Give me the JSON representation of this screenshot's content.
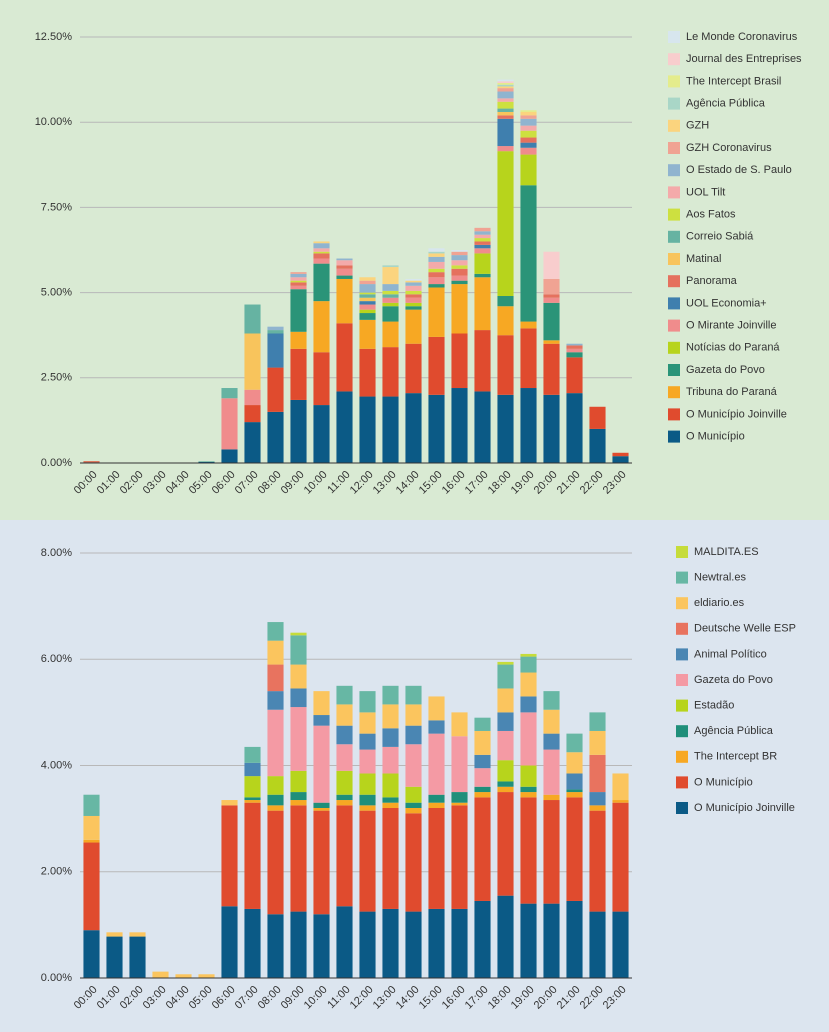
{
  "chart_data": [
    {
      "type": "bar",
      "stacked": true,
      "legend": "right",
      "grid": true,
      "background": "#d9ead3",
      "categories": [
        "00:00",
        "01:00",
        "02:00",
        "03:00",
        "04:00",
        "05:00",
        "06:00",
        "07:00",
        "08:00",
        "09:00",
        "10:00",
        "11:00",
        "12:00",
        "13:00",
        "14:00",
        "15:00",
        "16:00",
        "17:00",
        "18:00",
        "19:00",
        "20:00",
        "21:00",
        "22:00",
        "23:00"
      ],
      "ylim": [
        0,
        12.5
      ],
      "yticks": [
        {
          "value": 0,
          "label": "0.00%"
        },
        {
          "value": 2.5,
          "label": "2.50%"
        },
        {
          "value": 5,
          "label": "5.00%"
        },
        {
          "value": 7.5,
          "label": "7.50%"
        },
        {
          "value": 10,
          "label": "10.00%"
        },
        {
          "value": 12.5,
          "label": "12.50%"
        }
      ],
      "series": [
        {
          "name": "O Município",
          "color": "#0b5a86",
          "values": [
            0.02,
            0.01,
            0.01,
            0.01,
            0.01,
            0.03,
            0.4,
            1.2,
            1.5,
            1.85,
            1.7,
            2.1,
            1.95,
            1.95,
            2.05,
            2.0,
            2.2,
            2.1,
            2.0,
            2.2,
            2.0,
            2.05,
            1.0,
            0.2
          ]
        },
        {
          "name": "O Município Joinville",
          "color": "#e04b2e",
          "values": [
            0.03,
            0,
            0,
            0,
            0,
            0,
            0,
            0.5,
            1.3,
            1.5,
            1.55,
            2.0,
            1.4,
            1.45,
            1.45,
            1.7,
            1.6,
            1.8,
            1.75,
            1.75,
            1.5,
            1.05,
            0.65,
            0.1
          ]
        },
        {
          "name": "Tribuna do Paraná",
          "color": "#f7a823",
          "values": [
            0,
            0,
            0,
            0,
            0,
            0,
            0,
            0,
            0,
            0.5,
            1.5,
            1.3,
            0.85,
            0.75,
            1.0,
            1.45,
            1.45,
            1.55,
            0.85,
            0.2,
            0.1,
            0,
            0,
            0
          ]
        },
        {
          "name": "Gazeta do Povo",
          "color": "#2a9478",
          "values": [
            0,
            0,
            0,
            0,
            0,
            0,
            0,
            0,
            0,
            1.25,
            1.1,
            0.1,
            0.2,
            0.45,
            0.1,
            0.1,
            0.1,
            0.1,
            0.3,
            4.0,
            1.1,
            0.15,
            0,
            0
          ]
        },
        {
          "name": "Notícias do Paraná",
          "color": "#b7d41c",
          "values": [
            0,
            0,
            0,
            0,
            0,
            0,
            0,
            0,
            0,
            0,
            0,
            0,
            0.1,
            0.1,
            0.1,
            0,
            0,
            0.6,
            4.25,
            0.9,
            0,
            0,
            0,
            0
          ]
        },
        {
          "name": "O Mirante Joinville",
          "color": "#f08c8c",
          "values": [
            0,
            0,
            0,
            0,
            0,
            0,
            1.5,
            0.45,
            0,
            0.1,
            0.15,
            0.2,
            0.15,
            0.15,
            0.15,
            0.2,
            0.15,
            0.15,
            0.15,
            0.2,
            0.15,
            0.1,
            0,
            0
          ]
        },
        {
          "name": "UOL Economia+",
          "color": "#3f7fae",
          "values": [
            0,
            0,
            0,
            0,
            0,
            0,
            0,
            0,
            1.0,
            0,
            0,
            0,
            0.1,
            0,
            0,
            0,
            0,
            0.1,
            0.8,
            0.15,
            0,
            0,
            0,
            0
          ]
        },
        {
          "name": "Panorama",
          "color": "#e5715e",
          "values": [
            0,
            0,
            0,
            0,
            0,
            0,
            0,
            0,
            0,
            0.1,
            0.15,
            0.1,
            0,
            0,
            0.1,
            0.15,
            0.2,
            0.1,
            0.1,
            0.15,
            0.1,
            0.1,
            0,
            0
          ]
        },
        {
          "name": "Matinal",
          "color": "#f8c45c",
          "values": [
            0,
            0,
            0,
            0,
            0,
            0,
            0,
            1.65,
            0,
            0,
            0,
            0,
            0.1,
            0,
            0,
            0,
            0,
            0,
            0.1,
            0,
            0,
            0,
            0,
            0
          ]
        },
        {
          "name": "Correio Sabiá",
          "color": "#66b3a2",
          "values": [
            0,
            0,
            0,
            0,
            0,
            0.02,
            0.3,
            0.85,
            0.1,
            0,
            0,
            0,
            0.1,
            0.1,
            0,
            0,
            0,
            0,
            0.1,
            0,
            0,
            0,
            0,
            0
          ]
        },
        {
          "name": "Aos Fatos",
          "color": "#cde040",
          "values": [
            0,
            0,
            0,
            0,
            0,
            0,
            0,
            0,
            0,
            0.05,
            0.05,
            0,
            0.05,
            0.1,
            0.1,
            0.1,
            0.1,
            0.1,
            0.2,
            0.2,
            0,
            0,
            0,
            0
          ]
        },
        {
          "name": "UOL Tilt",
          "color": "#f4aaaa",
          "values": [
            0,
            0,
            0,
            0,
            0,
            0,
            0,
            0,
            0,
            0.1,
            0.1,
            0.15,
            0,
            0,
            0.15,
            0.2,
            0.15,
            0.1,
            0.1,
            0.15,
            0,
            0,
            0,
            0
          ]
        },
        {
          "name": "O Estado de S. Paulo",
          "color": "#90b4cf",
          "values": [
            0,
            0,
            0,
            0,
            0,
            0,
            0,
            0,
            0.1,
            0.1,
            0.15,
            0.05,
            0.25,
            0.2,
            0.1,
            0.15,
            0.15,
            0.1,
            0.2,
            0.2,
            0,
            0.05,
            0,
            0
          ]
        },
        {
          "name": "GZH Coronavirus",
          "color": "#f0a393",
          "values": [
            0,
            0,
            0,
            0,
            0,
            0,
            0,
            0,
            0,
            0.05,
            0,
            0,
            0.1,
            0,
            0,
            0,
            0.1,
            0.1,
            0.1,
            0.1,
            0.45,
            0,
            0,
            0
          ]
        },
        {
          "name": "GZH",
          "color": "#fbd47e",
          "values": [
            0,
            0,
            0,
            0,
            0,
            0,
            0,
            0,
            0,
            0,
            0.05,
            0,
            0.1,
            0.5,
            0.05,
            0.1,
            0,
            0,
            0.05,
            0.1,
            0,
            0,
            0,
            0
          ]
        },
        {
          "name": "Agência Pública",
          "color": "#a9d6c7",
          "values": [
            0,
            0,
            0,
            0,
            0,
            0,
            0,
            0,
            0,
            0,
            0,
            0,
            0,
            0.05,
            0,
            0.05,
            0,
            0,
            0.05,
            0,
            0,
            0,
            0,
            0
          ]
        },
        {
          "name": "The Intercept Brasil",
          "color": "#e4ec8c",
          "values": [
            0,
            0,
            0,
            0,
            0,
            0,
            0,
            0,
            0,
            0,
            0,
            0,
            0,
            0,
            0,
            0,
            0,
            0,
            0.05,
            0.05,
            0,
            0,
            0,
            0
          ]
        },
        {
          "name": "Journal des Entreprises",
          "color": "#f8cdcd",
          "values": [
            0,
            0,
            0,
            0,
            0,
            0,
            0,
            0,
            0,
            0,
            0,
            0,
            0,
            0,
            0,
            0,
            0,
            0,
            0.05,
            0,
            0.8,
            0,
            0,
            0
          ]
        },
        {
          "name": "Le Monde Coronavirus",
          "color": "#d7e6ee",
          "values": [
            0,
            0,
            0,
            0,
            0,
            0,
            0,
            0,
            0,
            0,
            0,
            0,
            0,
            0,
            0.05,
            0.1,
            0.05,
            0,
            0.05,
            0,
            0,
            0,
            0,
            0
          ]
        }
      ]
    },
    {
      "type": "bar",
      "stacked": true,
      "legend": "right",
      "grid": true,
      "background": "#dce5ef",
      "categories": [
        "00:00",
        "01:00",
        "02:00",
        "03:00",
        "04:00",
        "05:00",
        "06:00",
        "07:00",
        "08:00",
        "09:00",
        "10:00",
        "11:00",
        "12:00",
        "13:00",
        "14:00",
        "15:00",
        "16:00",
        "17:00",
        "18:00",
        "19:00",
        "20:00",
        "21:00",
        "22:00",
        "23:00"
      ],
      "ylim": [
        0,
        8
      ],
      "yticks": [
        {
          "value": 0,
          "label": "0.00%"
        },
        {
          "value": 2,
          "label": "2.00%"
        },
        {
          "value": 4,
          "label": "4.00%"
        },
        {
          "value": 6,
          "label": "6.00%"
        },
        {
          "value": 8,
          "label": "8.00%"
        }
      ],
      "series": [
        {
          "name": "O Município Joinville",
          "color": "#0b5a86",
          "values": [
            0.9,
            0.78,
            0.78,
            0,
            0,
            0,
            1.35,
            1.3,
            1.2,
            1.25,
            1.2,
            1.35,
            1.25,
            1.3,
            1.25,
            1.3,
            1.3,
            1.45,
            1.55,
            1.4,
            1.4,
            1.45,
            1.25,
            1.25
          ]
        },
        {
          "name": "O Município",
          "color": "#e04b2e",
          "values": [
            1.65,
            0,
            0,
            0,
            0,
            0,
            1.9,
            2.0,
            1.95,
            2.0,
            1.95,
            1.9,
            1.9,
            1.9,
            1.85,
            1.9,
            1.95,
            1.95,
            1.95,
            2.0,
            1.95,
            1.95,
            1.9,
            2.05
          ]
        },
        {
          "name": "The Intercept BR",
          "color": "#f7a823",
          "values": [
            0.05,
            0,
            0,
            0,
            0,
            0,
            0,
            0.05,
            0.1,
            0.1,
            0.05,
            0.1,
            0.1,
            0.1,
            0.1,
            0.1,
            0.05,
            0.1,
            0.1,
            0.1,
            0.1,
            0.1,
            0.1,
            0.05
          ]
        },
        {
          "name": "Agência Pública",
          "color": "#1f8f7a",
          "values": [
            0,
            0,
            0,
            0,
            0,
            0,
            0,
            0.05,
            0.2,
            0.15,
            0.1,
            0.1,
            0.2,
            0.1,
            0.1,
            0.15,
            0.2,
            0.1,
            0.1,
            0.1,
            0,
            0.05,
            0,
            0
          ]
        },
        {
          "name": "Estadão",
          "color": "#b7d41c",
          "values": [
            0,
            0,
            0,
            0,
            0,
            0,
            0,
            0.4,
            0.35,
            0.4,
            0,
            0.45,
            0.4,
            0.45,
            0.3,
            0,
            0,
            0,
            0.4,
            0.4,
            0,
            0,
            0,
            0
          ]
        },
        {
          "name": "Gazeta do Povo",
          "color": "#f49aa4",
          "values": [
            0,
            0,
            0,
            0,
            0,
            0,
            0,
            0,
            1.25,
            1.2,
            1.45,
            0.5,
            0.45,
            0.5,
            0.8,
            1.15,
            1.05,
            0.35,
            0.55,
            1.0,
            0.85,
            0,
            0,
            0
          ]
        },
        {
          "name": "Animal Político",
          "color": "#4a86b3",
          "values": [
            0,
            0,
            0,
            0,
            0,
            0,
            0,
            0.25,
            0.35,
            0.35,
            0.2,
            0.35,
            0.3,
            0.35,
            0.35,
            0.25,
            0,
            0.25,
            0.35,
            0.3,
            0.3,
            0.3,
            0.25,
            0
          ]
        },
        {
          "name": "Deutsche Welle ESP",
          "color": "#e8735f",
          "values": [
            0,
            0,
            0,
            0,
            0,
            0,
            0,
            0,
            0.5,
            0,
            0,
            0,
            0,
            0,
            0,
            0,
            0,
            0,
            0,
            0,
            0,
            0,
            0.7,
            0
          ]
        },
        {
          "name": "eldiario.es",
          "color": "#fbc55e",
          "values": [
            0.45,
            0.08,
            0.08,
            0.12,
            0.07,
            0.07,
            0.1,
            0,
            0.45,
            0.45,
            0.45,
            0.4,
            0.4,
            0.45,
            0.4,
            0.45,
            0.45,
            0.45,
            0.45,
            0.45,
            0.45,
            0.4,
            0.45,
            0.5
          ]
        },
        {
          "name": "Newtral.es",
          "color": "#67b7a4",
          "values": [
            0.4,
            0,
            0,
            0,
            0,
            0,
            0,
            0.3,
            0.35,
            0.55,
            0,
            0.35,
            0.4,
            0.35,
            0.35,
            0,
            0,
            0.25,
            0.45,
            0.3,
            0.35,
            0.35,
            0.35,
            0
          ]
        },
        {
          "name": "MALDITA.ES",
          "color": "#c6dc3a",
          "values": [
            0,
            0,
            0,
            0,
            0,
            0,
            0,
            0,
            0,
            0.05,
            0,
            0,
            0,
            0,
            0,
            0,
            0,
            0,
            0.05,
            0.05,
            0,
            0,
            0,
            0
          ]
        }
      ]
    }
  ]
}
